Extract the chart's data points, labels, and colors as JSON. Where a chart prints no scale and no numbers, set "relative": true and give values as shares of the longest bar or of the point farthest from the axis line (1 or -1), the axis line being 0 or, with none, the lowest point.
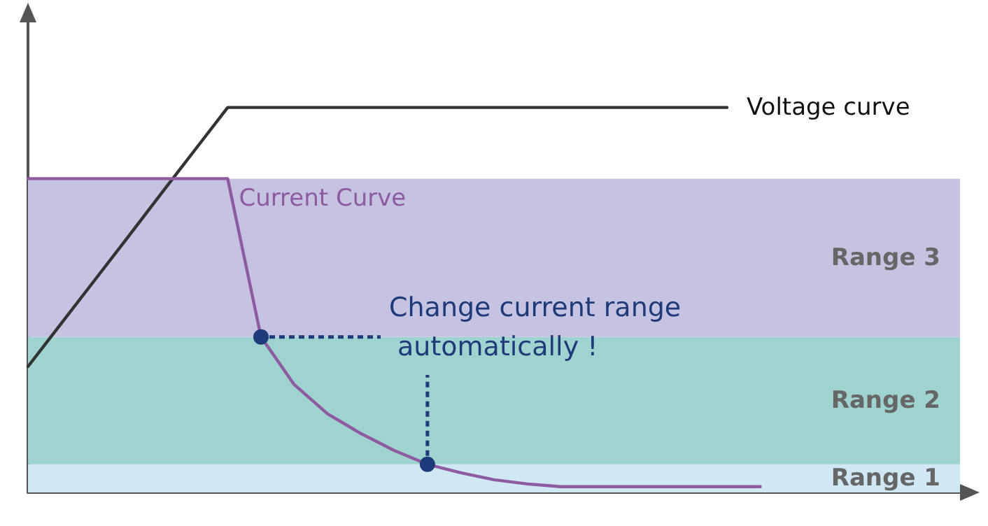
{
  "chart_data": {
    "type": "line",
    "relative": true,
    "marker": "none",
    "line_style": "solid",
    "grid": false,
    "legend": false,
    "categories": [
      null,
      null,
      null,
      null,
      null,
      null,
      null,
      null,
      null,
      null,
      null,
      null,
      null,
      null,
      null,
      null,
      null,
      null,
      null,
      null,
      null,
      null,
      null,
      null,
      null,
      null,
      null,
      null,
      null
    ],
    "series": [
      {
        "name": "Voltage curve",
        "color": "#333333",
        "values": [
          0.327,
          0.439,
          0.551,
          0.663,
          0.776,
          0.888,
          1,
          1,
          1,
          1,
          1,
          1,
          1,
          1,
          1,
          1,
          1,
          1,
          1,
          1,
          1,
          1,
          null,
          null,
          null,
          null,
          null,
          null,
          null
        ]
      },
      {
        "name": "Current Curve",
        "color": "#8e5aa0",
        "values": [
          0.815,
          0.815,
          0.815,
          0.815,
          0.815,
          0.815,
          0.815,
          0.404,
          0.28,
          0.204,
          0.153,
          0.109,
          0.073,
          0.051,
          0.033,
          0.022,
          0.015,
          0.015,
          0.015,
          0.015,
          0.015,
          0.015,
          0.015,
          null,
          null,
          null,
          null,
          null,
          null
        ]
      }
    ],
    "bands": [
      {
        "axis": "y",
        "from": 0,
        "to": 0.073,
        "label": "Range 1",
        "color": "#cfe8f4"
      },
      {
        "axis": "y",
        "from": 0.073,
        "to": 0.404,
        "label": "Range 2",
        "color": "#9fd3d0"
      },
      {
        "axis": "y",
        "from": 0.404,
        "to": 0.815,
        "label": "Range 3",
        "color": "#c5c3e1"
      }
    ],
    "annotations": [
      "Change current range automatically !"
    ]
  }
}
